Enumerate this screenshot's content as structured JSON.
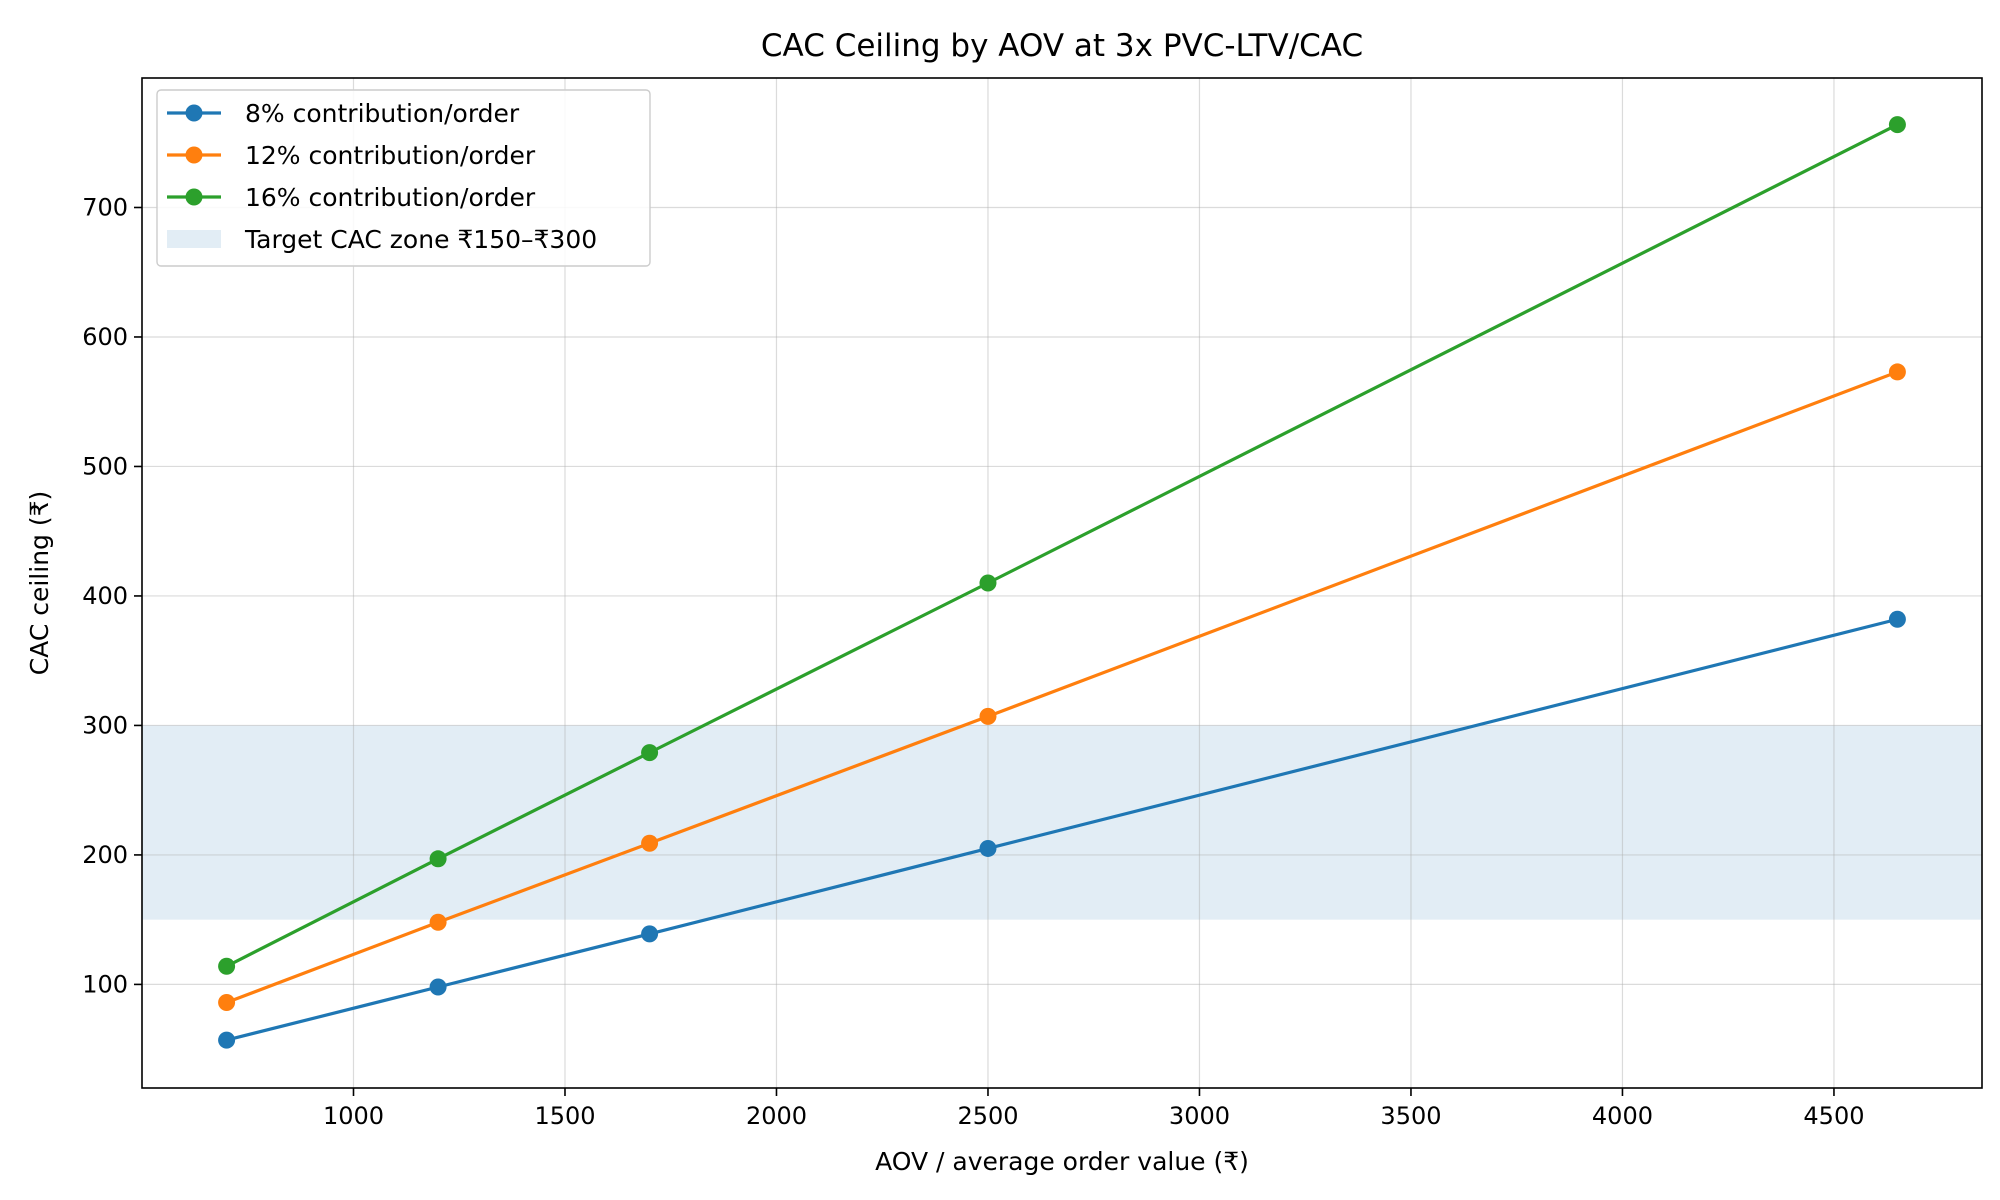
{
  "chart_data": {
    "type": "line",
    "title": "CAC Ceiling by AOV at 3x PVC-LTV/CAC",
    "xlabel": "AOV / average order value (₹)",
    "ylabel": "CAC ceiling (₹)",
    "x": [
      700,
      1200,
      1700,
      2500,
      4650
    ],
    "series": [
      {
        "name": "8% contribution/order",
        "color": "#1f77b4",
        "values": [
          57,
          98,
          139,
          205,
          382
        ]
      },
      {
        "name": "12% contribution/order",
        "color": "#ff7f0e",
        "values": [
          86,
          148,
          209,
          307,
          573
        ]
      },
      {
        "name": "16% contribution/order",
        "color": "#2ca02c",
        "values": [
          114,
          197,
          279,
          410,
          764
        ]
      }
    ],
    "band": {
      "name": "Target CAC zone ₹150–₹300",
      "y0": 150,
      "y1": 300,
      "color": "#1f77b4"
    },
    "xlim": [
      500,
      4850
    ],
    "ylim": [
      20,
      800
    ],
    "xticks": [
      1000,
      1500,
      2000,
      2500,
      3000,
      3500,
      4000,
      4500
    ],
    "yticks": [
      100,
      200,
      300,
      400,
      500,
      600,
      700
    ],
    "grid": true,
    "legend_position": "top-left"
  }
}
